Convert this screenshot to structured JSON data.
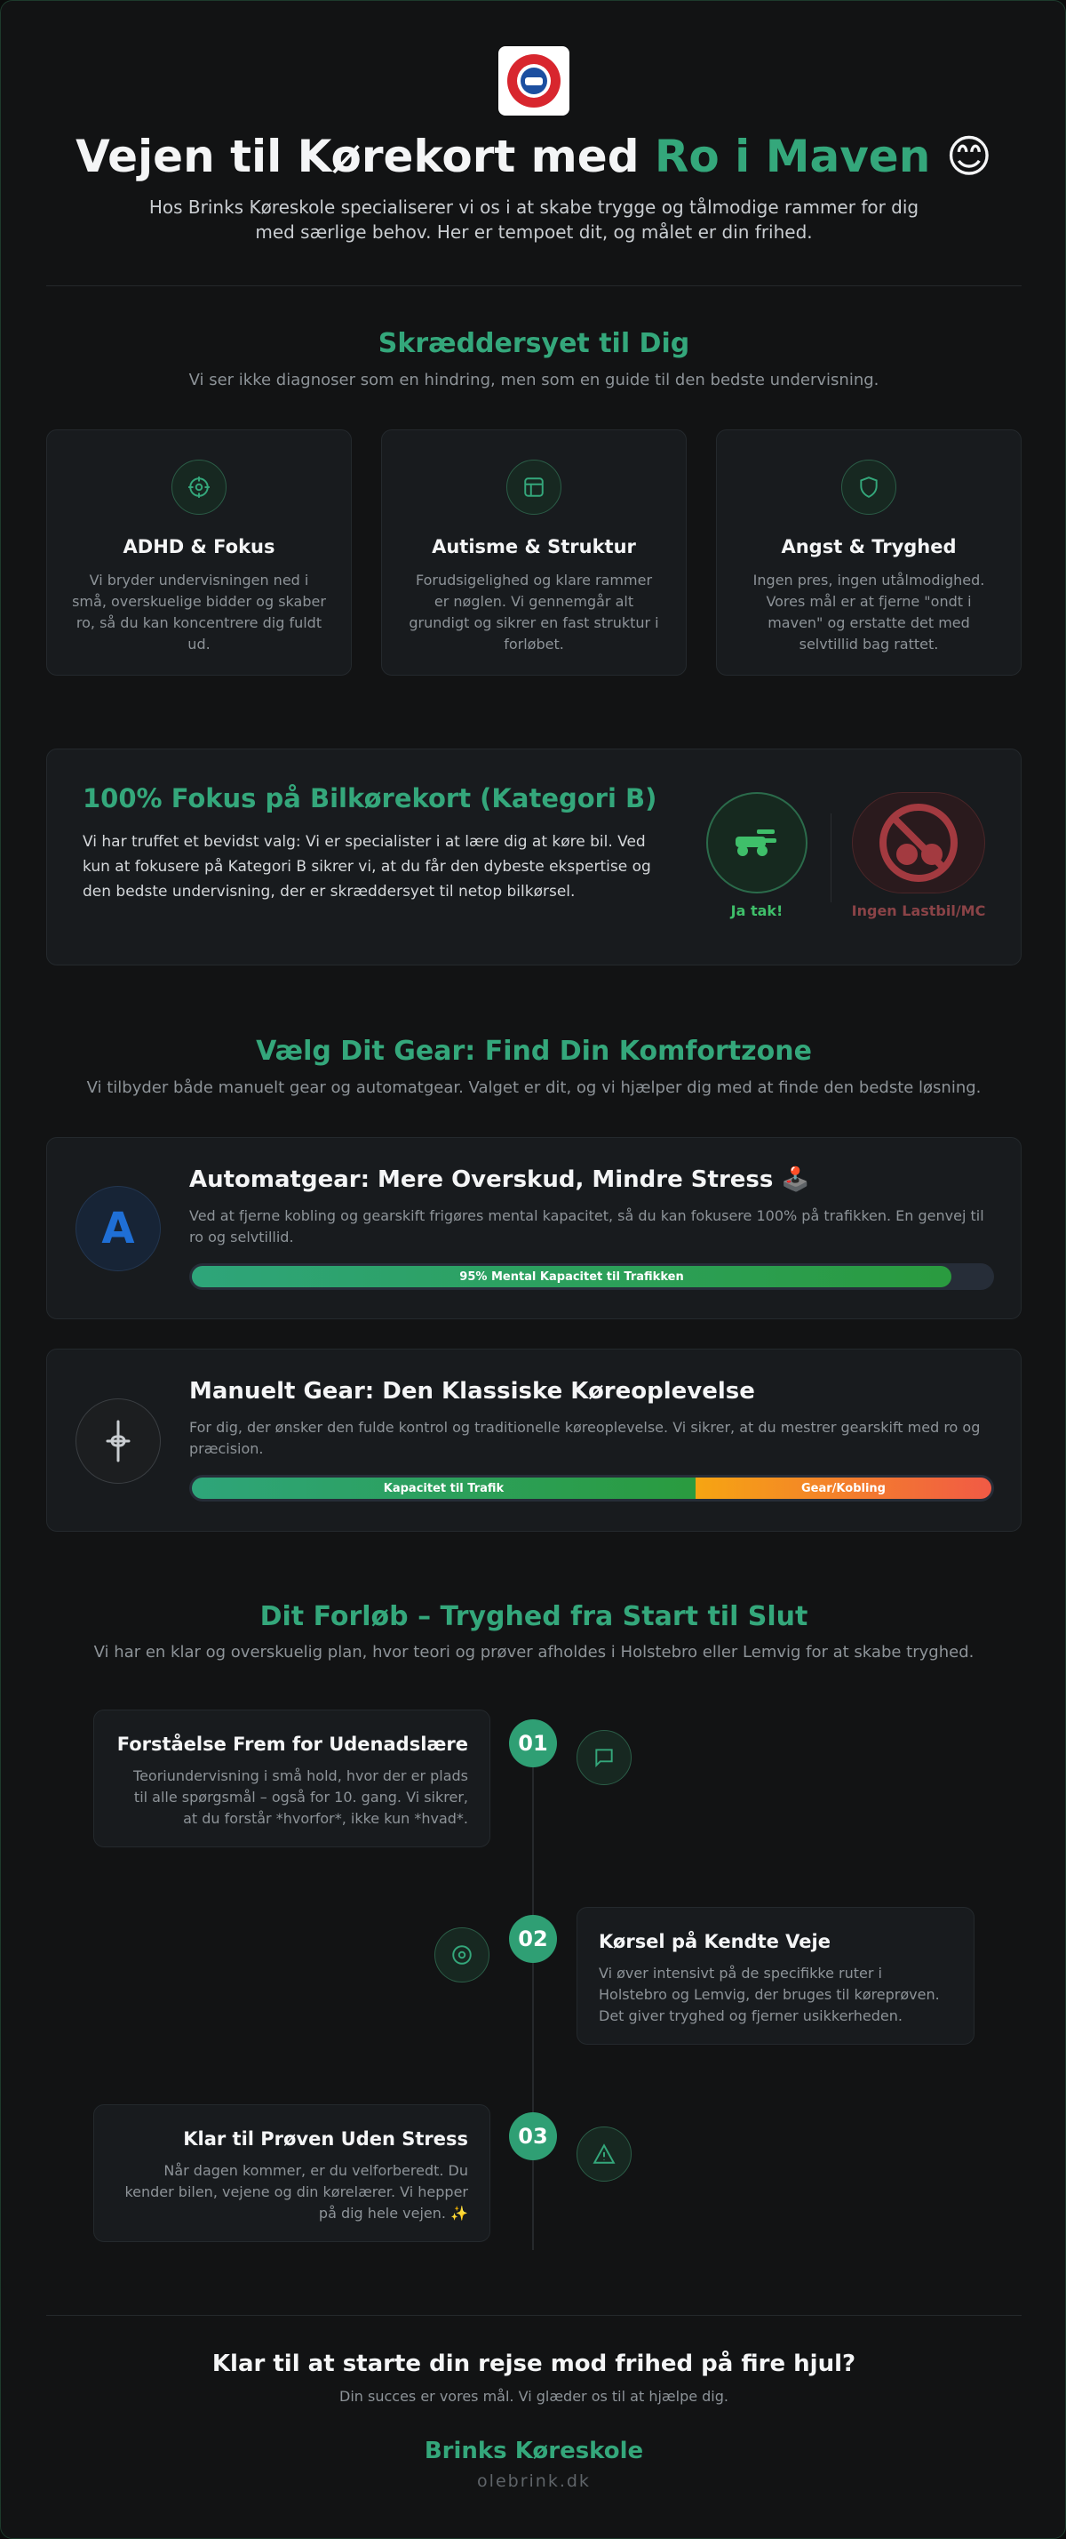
{
  "header": {
    "title_prefix": "Vejen til Kørekort med ",
    "title_highlight": "Ro i Maven",
    "title_emoji": "😊",
    "intro": "Hos Brinks Køreskole specialiserer vi os i at skabe trygge og tålmodige rammer for dig med særlige behov. Her er tempoet dit, og målet er din frihed."
  },
  "specialization": {
    "title": "Skræddersyet til Dig",
    "subtitle": "Vi ser ikke diagnoser som en hindring, men som en guide til den bedste undervisning.",
    "cards": [
      {
        "title": "ADHD & Fokus",
        "text": "Vi bryder undervisningen ned i små, overskuelige bidder og skaber ro, så du kan koncentrere dig fuldt ud."
      },
      {
        "title": "Autisme & Struktur",
        "text": "Forudsigelighed og klare rammer er nøglen. Vi gennemgår alt grundigt og sikrer en fast struktur i forløbet."
      },
      {
        "title": "Angst & Tryghed",
        "text": "Ingen pres, ingen utålmodighed. Vores mål er at fjerne \"ondt i maven\" og erstatte det med selvtillid bag rattet."
      }
    ]
  },
  "focus": {
    "title": "100% Fokus på Bilkørekort (Kategori B)",
    "text": "Vi har truffet et bevidst valg: Vi er specialister i at lære dig at køre bil. Ved kun at fokusere på Kategori B sikrer vi, at du får den dybeste ekspertise og den bedste undervisning, der er skræddersyet til netop bilkørsel.",
    "yes_label": "Ja tak!",
    "no_label": "Ingen Lastbil/MC"
  },
  "gear": {
    "title": "Vælg Dit Gear: Find Din Komfortzone",
    "subtitle": "Vi tilbyder både manuelt gear og automatgear. Valget er dit, og vi hjælper dig med at finde den bedste løsning.",
    "options": [
      {
        "icon_letter": "A",
        "title": "Automatgear: Mere Overskud, Mindre Stress 🕹️",
        "text": "Ved at fjerne kobling og gearskift frigøres mental kapacitet, så du kan fokusere 100% på trafikken. En genvej til ro og selvtillid.",
        "bar": {
          "label": "95% Mental Kapacitet til Trafikken",
          "value": 95
        }
      },
      {
        "title": "Manuelt Gear: Den Klassiske Køreoplevelse",
        "text": "For dig, der ønsker den fulde kontrol og traditionelle køreoplevelse. Vi sikrer, at du mestrer gearskift med ro og præcision.",
        "bar_labels": [
          "Kapacitet til Trafik",
          "Gear/Kobling"
        ]
      }
    ]
  },
  "process": {
    "title": "Dit Forløb – Tryghed fra Start til Slut",
    "subtitle": "Vi har en klar og overskuelig plan, hvor teori og prøver afholdes i Holstebro eller Lemvig for at skabe tryghed.",
    "steps": [
      {
        "number": "01",
        "title": "Forståelse Frem for Udenadslære",
        "text": "Teoriundervisning i små hold, hvor der er plads til alle spørgsmål – også for 10. gang. Vi sikrer, at du forstår *hvorfor*, ikke kun *hvad*."
      },
      {
        "number": "02",
        "title": "Kørsel på Kendte Veje",
        "text": "Vi øver intensivt på de specifikke ruter i Holstebro og Lemvig, der bruges til køreprøven. Det giver tryghed og fjerner usikkerheden."
      },
      {
        "number": "03",
        "title": "Klar til Prøven Uden Stress",
        "text": "Når dagen kommer, er du velforberedt. Du kender bilen, vejene og din kørelærer. Vi hepper på dig hele vejen. ✨"
      }
    ]
  },
  "footer": {
    "title": "Klar til at starte din rejse mod frihed på fire hjul?",
    "subtitle": "Din succes er vores mål. Vi glæder os til at hjælpe dig.",
    "brand": "Brinks Køreskole",
    "url": "olebrink.dk"
  }
}
